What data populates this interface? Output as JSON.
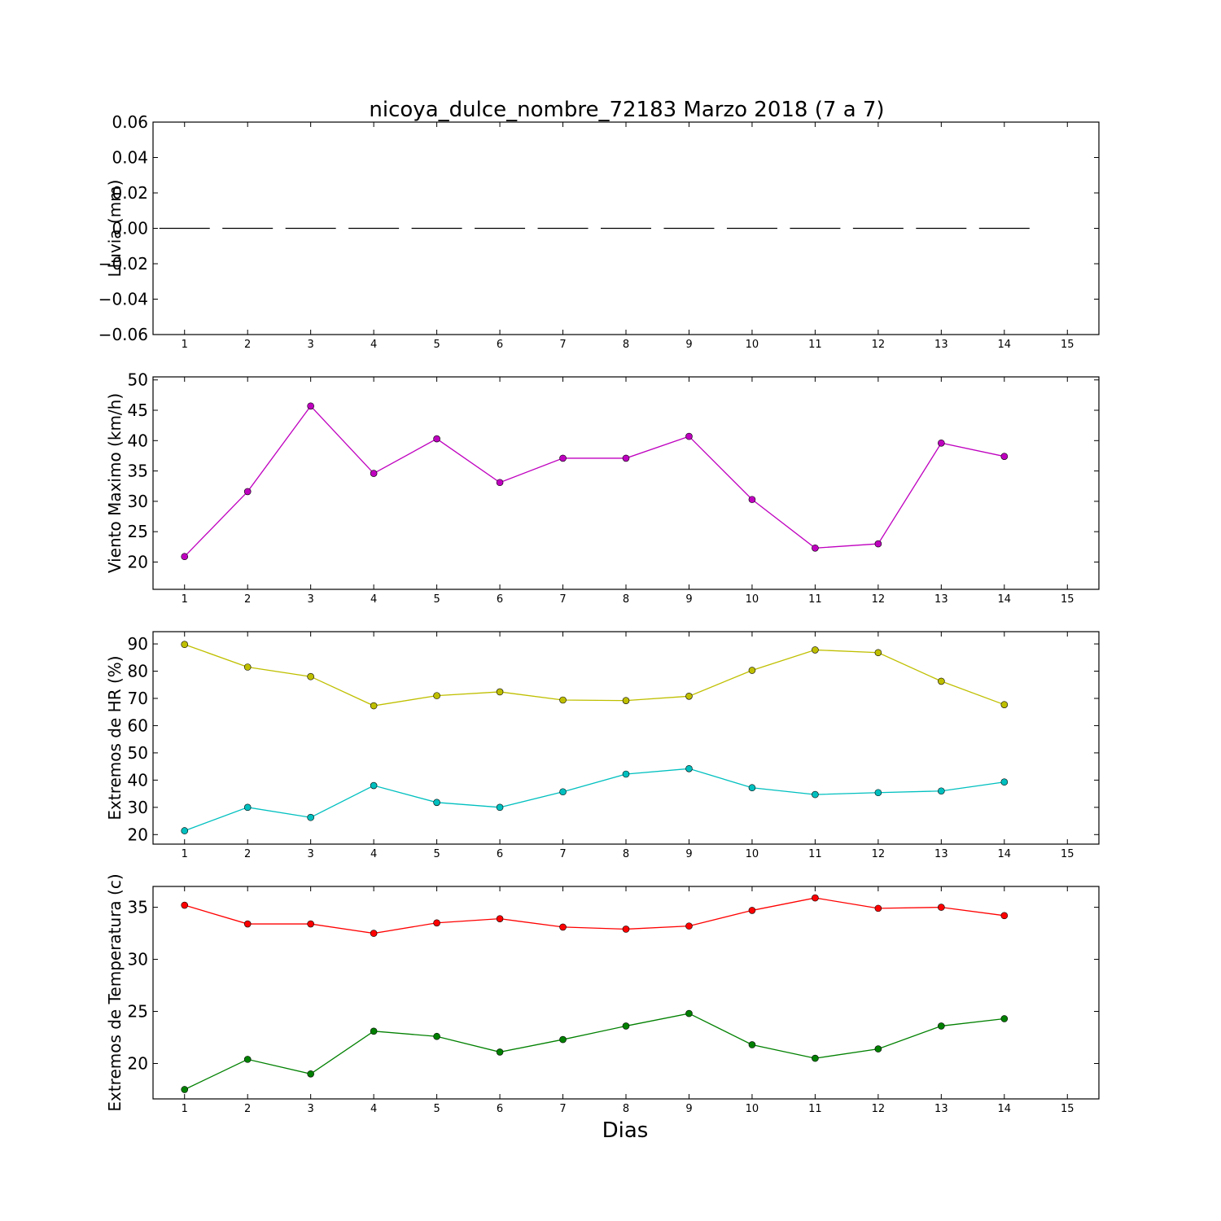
{
  "figure": {
    "title": "nicoya_dulce_nombre_72183 Marzo 2018  (7 a 7)",
    "xlabel": "Dias"
  },
  "chart_data": [
    {
      "type": "line",
      "ylabel": "Lluvia (mm)",
      "xlim": [
        0.5,
        15.5
      ],
      "ylim": [
        -0.06,
        0.06
      ],
      "x_ticks": [
        1,
        2,
        3,
        4,
        5,
        6,
        7,
        8,
        9,
        10,
        11,
        12,
        13,
        14,
        15
      ],
      "x_tick_labels": [
        "1",
        "2",
        "3",
        "4",
        "5",
        "6",
        "7",
        "8",
        "9",
        "10",
        "11",
        "12",
        "13",
        "14",
        "15"
      ],
      "y_ticks": [
        -0.06,
        -0.04,
        -0.02,
        0.0,
        0.02,
        0.04,
        0.06
      ],
      "y_tick_labels": [
        "−0.06",
        "−0.04",
        "−0.02",
        "0.00",
        "0.02",
        "0.04",
        "0.06"
      ],
      "style": "dashes",
      "series": [
        {
          "color": "#000000",
          "x": [
            1,
            2,
            3,
            4,
            5,
            6,
            7,
            8,
            9,
            10,
            11,
            12,
            13,
            14
          ],
          "values": [
            0,
            0,
            0,
            0,
            0,
            0,
            0,
            0,
            0,
            0,
            0,
            0,
            0,
            0
          ]
        }
      ]
    },
    {
      "type": "line",
      "ylabel": "Viento Maximo (km/h)",
      "xlim": [
        0.5,
        15.5
      ],
      "ylim": [
        15.5,
        50.5
      ],
      "x_ticks": [
        1,
        2,
        3,
        4,
        5,
        6,
        7,
        8,
        9,
        10,
        11,
        12,
        13,
        14,
        15
      ],
      "x_tick_labels": [
        "1",
        "2",
        "3",
        "4",
        "5",
        "6",
        "7",
        "8",
        "9",
        "10",
        "11",
        "12",
        "13",
        "14",
        "15"
      ],
      "y_ticks": [
        20,
        25,
        30,
        35,
        40,
        45,
        50
      ],
      "y_tick_labels": [
        "20",
        "25",
        "30",
        "35",
        "40",
        "45",
        "50"
      ],
      "style": "markers",
      "series": [
        {
          "color": "#bf00bf",
          "x": [
            1,
            2,
            3,
            4,
            5,
            6,
            7,
            8,
            9,
            10,
            11,
            12,
            13,
            14
          ],
          "values": [
            20.9,
            31.6,
            45.7,
            34.6,
            40.3,
            33.1,
            37.1,
            37.1,
            40.7,
            30.3,
            22.3,
            23.0,
            39.6,
            37.4
          ]
        }
      ]
    },
    {
      "type": "line",
      "ylabel": "Extremos de HR (%)",
      "xlim": [
        0.5,
        15.5
      ],
      "ylim": [
        16.5,
        94.5
      ],
      "x_ticks": [
        1,
        2,
        3,
        4,
        5,
        6,
        7,
        8,
        9,
        10,
        11,
        12,
        13,
        14,
        15
      ],
      "x_tick_labels": [
        "1",
        "2",
        "3",
        "4",
        "5",
        "6",
        "7",
        "8",
        "9",
        "10",
        "11",
        "12",
        "13",
        "14",
        "15"
      ],
      "y_ticks": [
        20,
        30,
        40,
        50,
        60,
        70,
        80,
        90
      ],
      "y_tick_labels": [
        "20",
        "30",
        "40",
        "50",
        "60",
        "70",
        "80",
        "90"
      ],
      "style": "markers",
      "series": [
        {
          "color": "#bfbf00",
          "x": [
            1,
            2,
            3,
            4,
            5,
            6,
            7,
            8,
            9,
            10,
            11,
            12,
            13,
            14
          ],
          "values": [
            89.8,
            81.5,
            78.0,
            67.3,
            71.0,
            72.4,
            69.4,
            69.2,
            70.8,
            80.3,
            87.8,
            86.8,
            76.3,
            67.7
          ]
        },
        {
          "color": "#00bfbf",
          "x": [
            1,
            2,
            3,
            4,
            5,
            6,
            7,
            8,
            9,
            10,
            11,
            12,
            13,
            14
          ],
          "values": [
            21.4,
            30.0,
            26.3,
            38.0,
            31.8,
            30.0,
            35.7,
            42.2,
            44.2,
            37.2,
            34.7,
            35.4,
            36.0,
            39.3
          ]
        }
      ]
    },
    {
      "type": "line",
      "ylabel": "Extremos de Temperatura (c)",
      "xlim": [
        0.5,
        15.5
      ],
      "ylim": [
        16.6,
        37.0
      ],
      "x_ticks": [
        1,
        2,
        3,
        4,
        5,
        6,
        7,
        8,
        9,
        10,
        11,
        12,
        13,
        14,
        15
      ],
      "x_tick_labels": [
        "1",
        "2",
        "3",
        "4",
        "5",
        "6",
        "7",
        "8",
        "9",
        "10",
        "11",
        "12",
        "13",
        "14",
        "15"
      ],
      "y_ticks": [
        20,
        25,
        30,
        35
      ],
      "y_tick_labels": [
        "20",
        "25",
        "30",
        "35"
      ],
      "style": "markers",
      "series": [
        {
          "color": "#ff0000",
          "x": [
            1,
            2,
            3,
            4,
            5,
            6,
            7,
            8,
            9,
            10,
            11,
            12,
            13,
            14
          ],
          "values": [
            35.2,
            33.4,
            33.4,
            32.5,
            33.5,
            33.9,
            33.1,
            32.9,
            33.2,
            34.7,
            35.9,
            34.9,
            35.0,
            34.2
          ]
        },
        {
          "color": "#008000",
          "x": [
            1,
            2,
            3,
            4,
            5,
            6,
            7,
            8,
            9,
            10,
            11,
            12,
            13,
            14
          ],
          "values": [
            17.5,
            20.4,
            19.0,
            23.1,
            22.6,
            21.1,
            22.3,
            23.6,
            24.8,
            21.8,
            20.5,
            21.4,
            23.6,
            24.3
          ]
        }
      ]
    }
  ]
}
